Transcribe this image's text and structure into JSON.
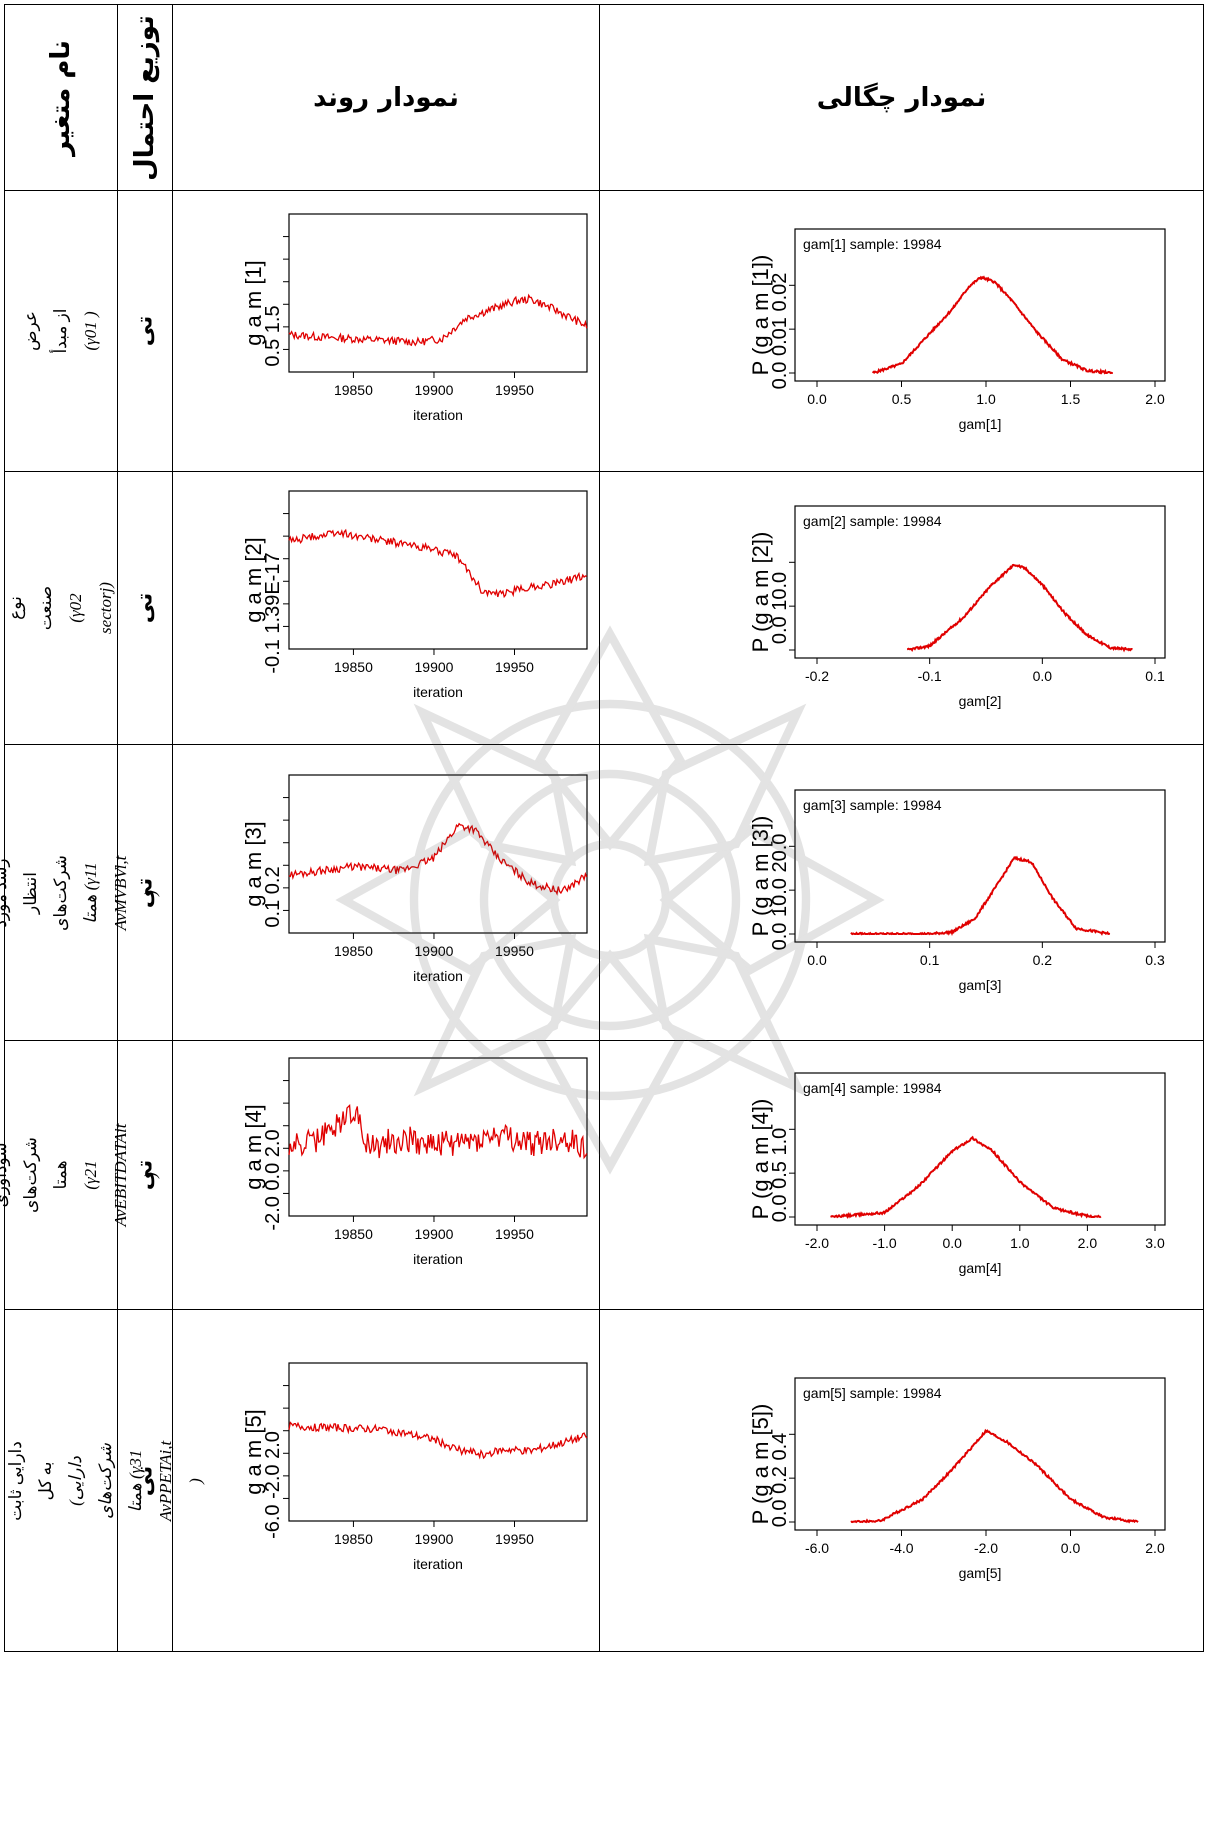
{
  "header": {
    "variable_name": "نام متغیر",
    "distribution": "توزیع احتمال",
    "trace_plot": "نمودار روند",
    "density_plot": "نمودار چگالی"
  },
  "rows": [
    {
      "var_line1": "عرض از مبدأ",
      "var_line2": "(γ01 )",
      "dist": "تی",
      "trace": {
        "ylabel": "g a m [1]",
        "ticks": [
          "0.5",
          "1.5"
        ],
        "xticks": [
          "19850",
          "19900",
          "19950"
        ],
        "xlabel": "iteration"
      },
      "density": {
        "legend": "gam[1] sample: 19984",
        "ylabel": "P (g a m [1])",
        "yticks": "0.0 0.01 0.02",
        "xticks": [
          "0.0",
          "0.5",
          "1.0",
          "1.5",
          "2.0"
        ],
        "xlabel": "gam[1]"
      }
    },
    {
      "var_line1": "نوع صنعت",
      "var_line2": "(γ02 sectorj)",
      "dist": "تی",
      "trace": {
        "ylabel": "g a m [2]",
        "ticks": "-0.1 1.39E-17",
        "xticks": [
          "19850",
          "19900",
          "19950"
        ],
        "xlabel": "iteration"
      },
      "density": {
        "legend": "gam[2] sample: 19984",
        "ylabel": "P (g a m [2])",
        "yticks": "0.0 10.0",
        "xticks": [
          "-0.2",
          "-0.1",
          "0.0",
          "0.1"
        ],
        "xlabel": "gam[2]"
      }
    },
    {
      "var_line1": "متوسط رشد مورد انتظار شرکت‌های",
      "var_line2": "همتا (γ11 AvMVBVi,t )",
      "dist": "تی",
      "trace": {
        "ylabel": "g a m [3]",
        "ticks": [
          "0.1",
          "0.2"
        ],
        "xticks": [
          "19850",
          "19900",
          "19950"
        ],
        "xlabel": "iteration"
      },
      "density": {
        "legend": "gam[3] sample: 19984",
        "ylabel": "P (g a m [3])",
        "yticks": "0.0 10.0 20.0",
        "xticks": [
          "0.0",
          "0.1",
          "0.2",
          "0.3"
        ],
        "xlabel": "gam[3]"
      }
    },
    {
      "var_line1": "متوسط سودآوری شرکت‌های همتا",
      "var_line2": "(γ21 AvEBITDATAit )",
      "dist": "تی",
      "trace": {
        "ylabel": "g a m [4]",
        "ticks": "-2.0 0.0 2.0",
        "xticks": [
          "19850",
          "19900",
          "19950"
        ],
        "xlabel": "iteration"
      },
      "density": {
        "legend": "gam[4] sample: 19984",
        "ylabel": "P (g a m [4])",
        "yticks": "0.0 0.5 1.0",
        "xticks": [
          "-2.0",
          "-1.0",
          "0.0",
          "1.0",
          "2.0",
          "3.0"
        ],
        "xlabel": "gam[4]"
      }
    },
    {
      "var_line1": "ساختار دارایی (نسبت دارایی ثابت به کل",
      "var_line2": "دارایی) شرکت‌های همتا (γ31 AvPPETAi,t )",
      "dist": "تی",
      "trace": {
        "ylabel": "g a m [5]",
        "ticks": "-6.0 -2.0 2.0",
        "xticks": [
          "19850",
          "19900",
          "19950"
        ],
        "xlabel": "iteration"
      },
      "density": {
        "legend": "gam[5] sample: 19984",
        "ylabel": "P (g a m [5])",
        "yticks": "0.0 0.2 0.4",
        "xticks": [
          "-6.0",
          "-4.0",
          "-2.0",
          "0.0",
          "2.0"
        ],
        "xlabel": "gam[5]"
      }
    }
  ],
  "chart_data": [
    {
      "type": "line",
      "title": "",
      "xlabel": "iteration",
      "ylabel": "gam[1]",
      "xlim": [
        19810,
        19995
      ],
      "ylim": [
        0.3,
        2.2
      ],
      "x": [
        19810,
        19830,
        19850,
        19870,
        19890,
        19905,
        19920,
        19935,
        19950,
        19960,
        19975,
        19995
      ],
      "values": [
        0.75,
        0.72,
        0.7,
        0.68,
        0.66,
        0.7,
        0.95,
        1.05,
        1.15,
        1.18,
        1.05,
        0.85
      ]
    },
    {
      "type": "line",
      "title": "",
      "xlabel": "iteration",
      "ylabel": "gam[2]",
      "xlim": [
        19810,
        19995
      ],
      "ylim": [
        -0.13,
        0.06
      ],
      "x": [
        19810,
        19840,
        19870,
        19900,
        19915,
        19930,
        19940,
        19960,
        19980,
        19995
      ],
      "values": [
        0.0,
        0.01,
        0.0,
        -0.01,
        -0.02,
        -0.06,
        -0.065,
        -0.055,
        -0.05,
        -0.04
      ]
    },
    {
      "type": "line",
      "title": "",
      "xlabel": "iteration",
      "ylabel": "gam[3]",
      "xlim": [
        19810,
        19995
      ],
      "ylim": [
        0.09,
        0.28
      ],
      "x": [
        19810,
        19850,
        19880,
        19900,
        19915,
        19925,
        19940,
        19960,
        19980,
        19995
      ],
      "values": [
        0.16,
        0.17,
        0.165,
        0.18,
        0.22,
        0.215,
        0.18,
        0.15,
        0.14,
        0.16
      ]
    },
    {
      "type": "line",
      "title": "",
      "xlabel": "iteration",
      "ylabel": "gam[4]",
      "xlim": [
        19810,
        19995
      ],
      "ylim": [
        -2.3,
        3.0
      ],
      "x": [
        19810,
        19830,
        19850,
        19860,
        19880,
        19900,
        19920,
        19940,
        19960,
        19980,
        19995
      ],
      "values": [
        0.0,
        0.3,
        1.3,
        0.0,
        0.3,
        0.1,
        0.2,
        0.4,
        0.1,
        0.3,
        0.0
      ]
    },
    {
      "type": "line",
      "title": "",
      "xlabel": "iteration",
      "ylabel": "gam[5]",
      "xlim": [
        19810,
        19995
      ],
      "ylim": [
        -6.5,
        3.0
      ],
      "x": [
        19810,
        19840,
        19870,
        19900,
        19915,
        19930,
        19945,
        19960,
        19980,
        19995
      ],
      "values": [
        -0.8,
        -0.9,
        -1.0,
        -1.6,
        -2.2,
        -2.5,
        -2.2,
        -2.3,
        -1.8,
        -1.4
      ]
    },
    {
      "type": "area",
      "title": "gam[1] sample: 19984",
      "xlabel": "gam[1]",
      "ylabel": "P (gam[1])",
      "xlim": [
        0.0,
        2.0
      ],
      "ylim": [
        0,
        0.025
      ],
      "x": [
        0.33,
        0.5,
        0.65,
        0.8,
        0.9,
        0.97,
        1.05,
        1.15,
        1.3,
        1.45,
        1.6,
        1.75
      ],
      "values": [
        0.0,
        0.002,
        0.008,
        0.014,
        0.019,
        0.021,
        0.02,
        0.016,
        0.009,
        0.003,
        0.0005,
        0.0
      ]
    },
    {
      "type": "area",
      "title": "gam[2] sample: 19984",
      "xlabel": "gam[2]",
      "ylabel": "P (gam[2])",
      "xlim": [
        -0.2,
        0.1
      ],
      "ylim": [
        0,
        14
      ],
      "x": [
        -0.12,
        -0.1,
        -0.07,
        -0.045,
        -0.025,
        -0.015,
        0.0,
        0.02,
        0.04,
        0.06,
        0.08
      ],
      "values": [
        0.0,
        0.5,
        4.0,
        8.0,
        10.5,
        10.0,
        8.0,
        4.5,
        1.8,
        0.3,
        0.0
      ]
    },
    {
      "type": "area",
      "title": "gam[3] sample: 19984",
      "xlabel": "gam[3]",
      "ylabel": "P (gam[3])",
      "xlim": [
        0.0,
        0.3
      ],
      "ylim": [
        0,
        30
      ],
      "x": [
        0.03,
        0.1,
        0.12,
        0.14,
        0.16,
        0.175,
        0.19,
        0.21,
        0.23,
        0.26
      ],
      "values": [
        0.0,
        0.0,
        0.5,
        4.0,
        13.0,
        20.0,
        19.0,
        9.0,
        1.5,
        0.0
      ]
    },
    {
      "type": "area",
      "title": "gam[4] sample: 19984",
      "xlabel": "gam[4]",
      "ylabel": "P (gam[4])",
      "xlim": [
        -2.0,
        3.0
      ],
      "ylim": [
        0,
        1.3
      ],
      "x": [
        -1.8,
        -1.0,
        -0.5,
        0.0,
        0.3,
        0.6,
        1.0,
        1.5,
        2.0,
        2.2
      ],
      "values": [
        0.0,
        0.05,
        0.35,
        0.75,
        0.9,
        0.75,
        0.4,
        0.1,
        0.01,
        0.0
      ]
    },
    {
      "type": "area",
      "title": "gam[5] sample: 19984",
      "xlabel": "gam[5]",
      "ylabel": "P (gam[5])",
      "xlim": [
        -6.0,
        2.0
      ],
      "ylim": [
        0,
        0.5
      ],
      "x": [
        -5.2,
        -4.5,
        -3.5,
        -2.8,
        -2.0,
        -1.5,
        -0.8,
        0.0,
        0.8,
        1.6
      ],
      "values": [
        0.0,
        0.005,
        0.1,
        0.23,
        0.4,
        0.35,
        0.25,
        0.1,
        0.02,
        0.0
      ]
    }
  ]
}
